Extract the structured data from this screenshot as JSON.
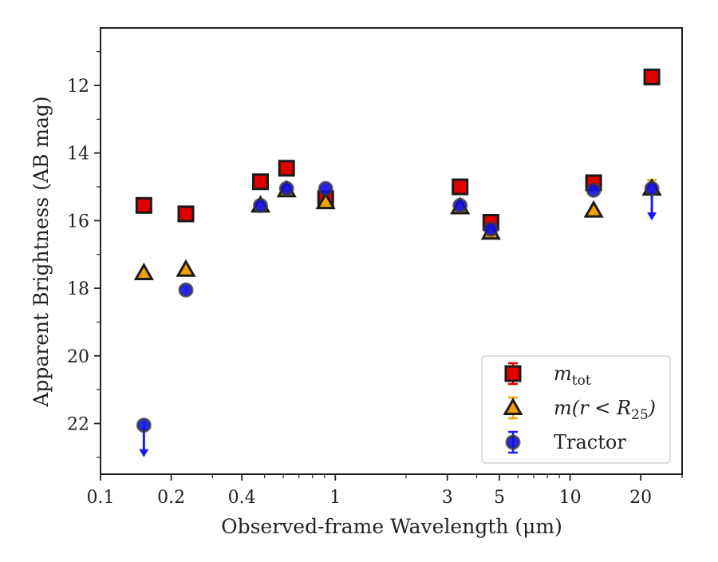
{
  "chart_data": {
    "type": "scatter",
    "title": "",
    "xlabel": "Observed-frame Wavelength (μm)",
    "ylabel": "Apparent Brightness (AB mag)",
    "xscale": "log",
    "xlim": [
      0.1,
      30
    ],
    "ylim": [
      23.5,
      10.3
    ],
    "y_inverted": true,
    "xticks": [
      {
        "value": 0.1,
        "label": "0.1"
      },
      {
        "value": 0.2,
        "label": "0.2"
      },
      {
        "value": 0.4,
        "label": "0.4"
      },
      {
        "value": 1,
        "label": "1"
      },
      {
        "value": 3,
        "label": "3"
      },
      {
        "value": 5,
        "label": "5"
      },
      {
        "value": 10,
        "label": "10"
      },
      {
        "value": 20,
        "label": "20"
      }
    ],
    "yticks": [
      {
        "value": 12,
        "label": "12"
      },
      {
        "value": 14,
        "label": "14"
      },
      {
        "value": 16,
        "label": "16"
      },
      {
        "value": 18,
        "label": "18"
      },
      {
        "value": 20,
        "label": "20"
      },
      {
        "value": 22,
        "label": "22"
      }
    ],
    "grid": false,
    "legend_position": "lower-right",
    "series": [
      {
        "name": "m_tot",
        "legend_label": {
          "base": "m",
          "sub": "tot"
        },
        "marker": "square",
        "color": "#e00000",
        "edge_color": "#1a1a1a",
        "errorbar_color": "#e00000",
        "points": [
          {
            "x": 0.153,
            "y": 15.55
          },
          {
            "x": 0.231,
            "y": 15.8
          },
          {
            "x": 0.48,
            "y": 14.85
          },
          {
            "x": 0.62,
            "y": 14.45
          },
          {
            "x": 0.91,
            "y": 15.35
          },
          {
            "x": 3.4,
            "y": 15.0
          },
          {
            "x": 4.6,
            "y": 16.05
          },
          {
            "x": 12.6,
            "y": 14.88
          },
          {
            "x": 22.3,
            "y": 11.75
          }
        ]
      },
      {
        "name": "m(r < R25)",
        "legend_label": {
          "base": "m(r < R",
          "sub": "25",
          "tail": ")"
        },
        "marker": "triangle",
        "color": "#f0a000",
        "edge_color": "#1a1a1a",
        "errorbar_color": "#f0a000",
        "points": [
          {
            "x": 0.153,
            "y": 17.55
          },
          {
            "x": 0.231,
            "y": 17.45
          },
          {
            "x": 0.48,
            "y": 15.55
          },
          {
            "x": 0.62,
            "y": 15.1
          },
          {
            "x": 0.91,
            "y": 15.45
          },
          {
            "x": 3.4,
            "y": 15.6
          },
          {
            "x": 4.6,
            "y": 16.35
          },
          {
            "x": 12.6,
            "y": 15.7
          },
          {
            "x": 22.3,
            "y": 15.05,
            "err": 0.25
          }
        ]
      },
      {
        "name": "Tractor",
        "legend_label": {
          "base": "Tractor"
        },
        "marker": "circle",
        "color": "#1010e0",
        "edge_color": "#3a3a3a",
        "errorbar_color": "#1a1aee",
        "points": [
          {
            "x": 0.153,
            "y": 22.05,
            "upper_limit": true
          },
          {
            "x": 0.231,
            "y": 18.05
          },
          {
            "x": 0.48,
            "y": 15.55
          },
          {
            "x": 0.62,
            "y": 15.05
          },
          {
            "x": 0.91,
            "y": 15.05
          },
          {
            "x": 3.4,
            "y": 15.55
          },
          {
            "x": 4.6,
            "y": 16.25
          },
          {
            "x": 12.6,
            "y": 15.1
          },
          {
            "x": 22.3,
            "y": 15.05,
            "upper_limit": true
          }
        ]
      }
    ]
  }
}
